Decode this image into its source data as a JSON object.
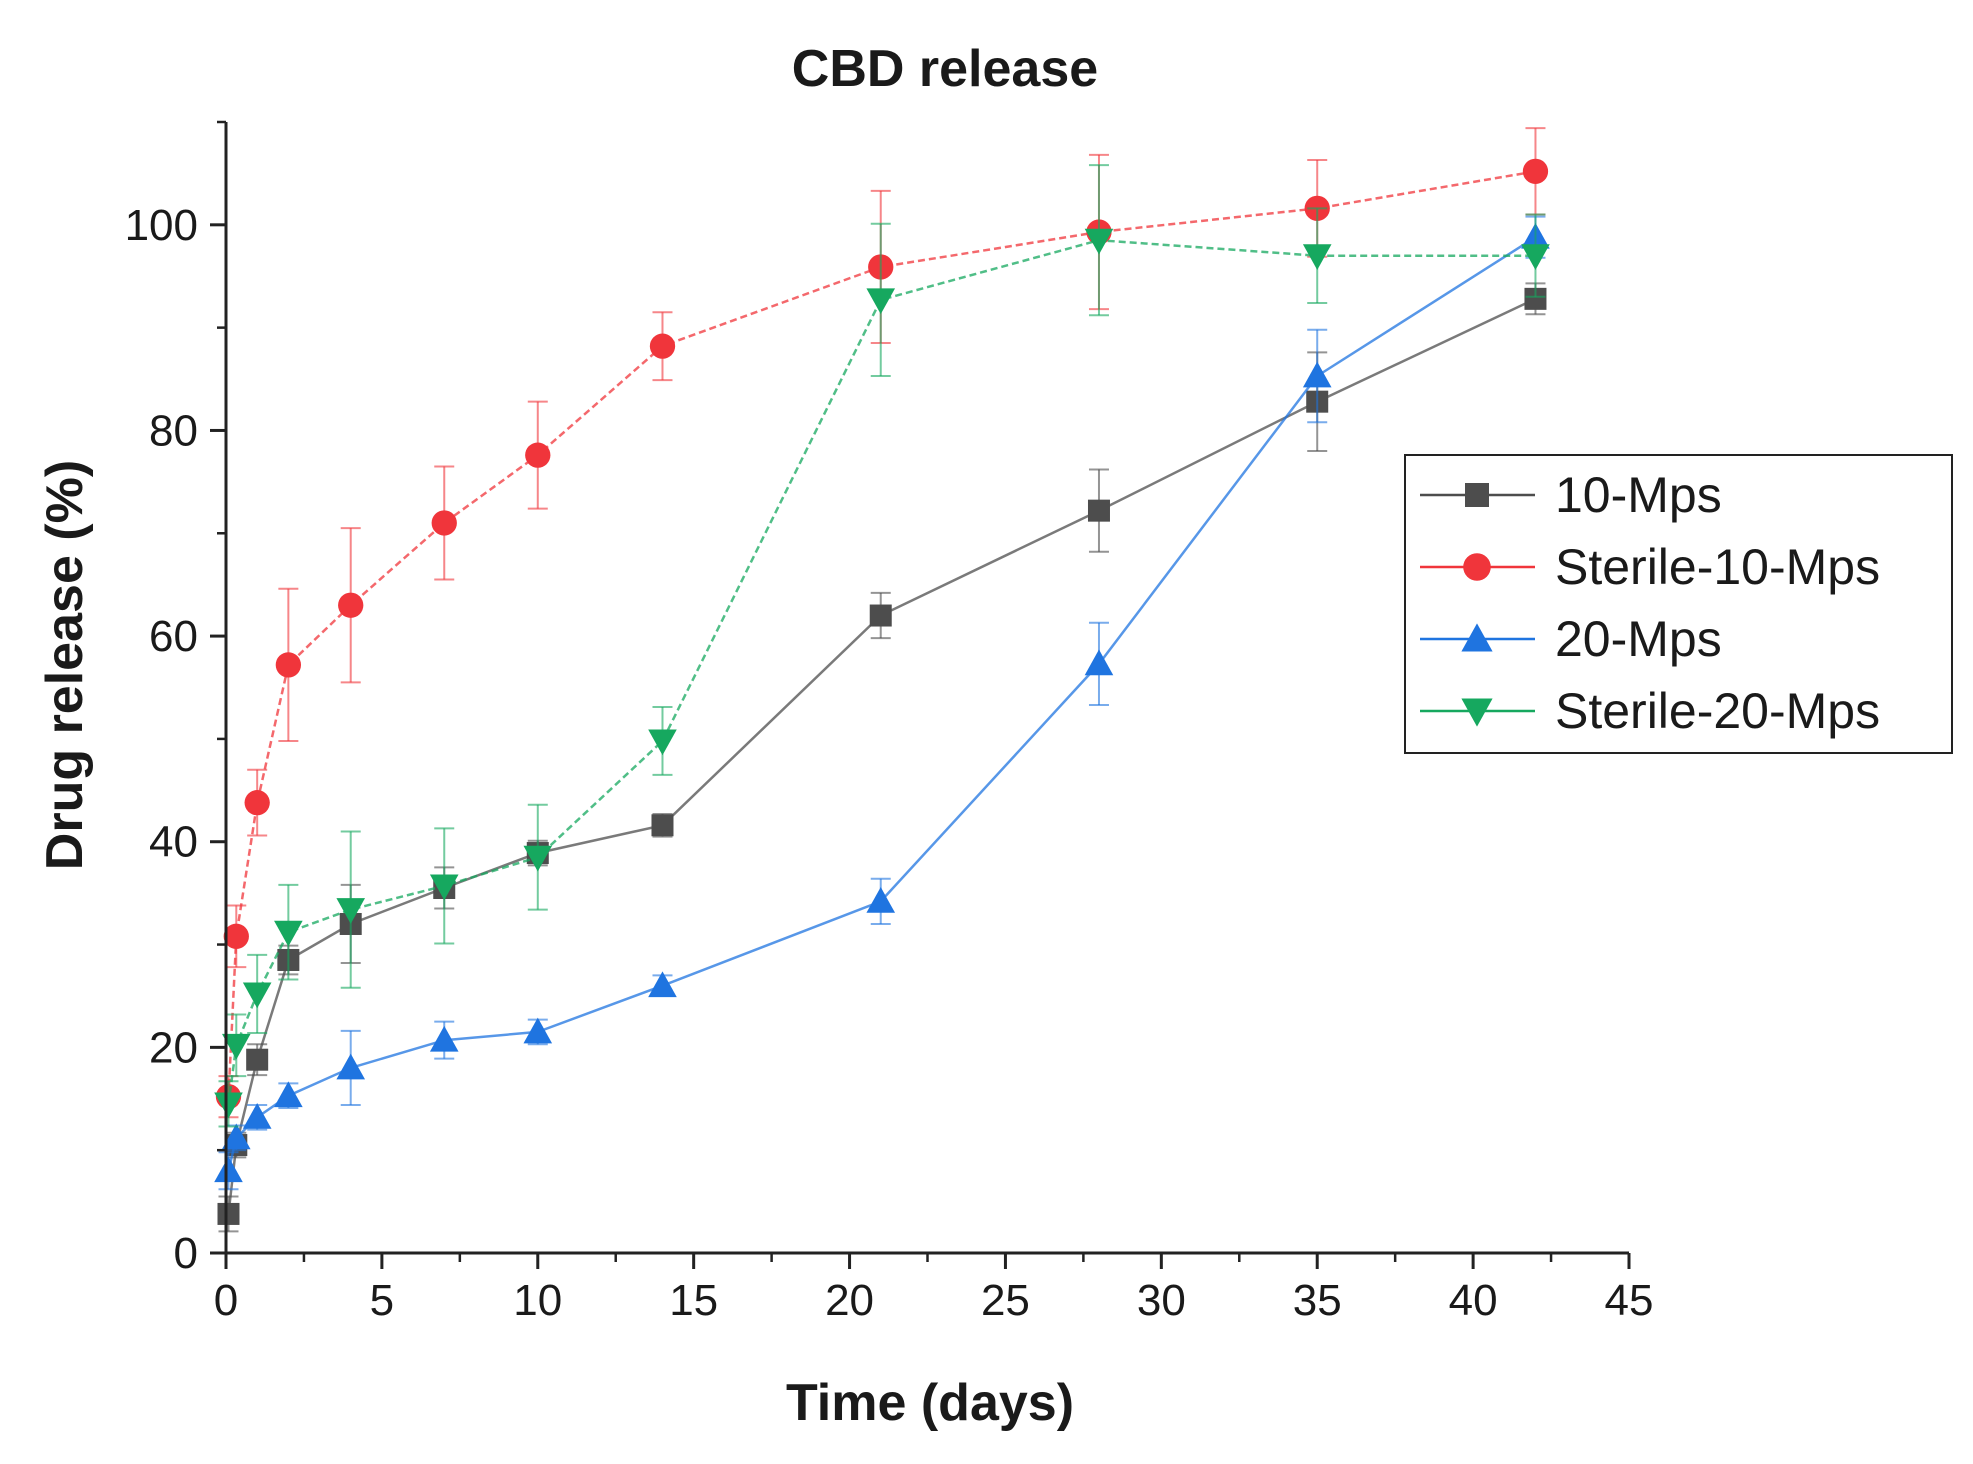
{
  "chart_data": {
    "type": "line",
    "title": "CBD release",
    "xlabel": "Time (days)",
    "ylabel": "Drug release (%)",
    "xlim": [
      0,
      45
    ],
    "ylim": [
      0,
      110
    ],
    "x_ticks": [
      0,
      5,
      10,
      15,
      20,
      25,
      30,
      35,
      40,
      45
    ],
    "y_ticks": [
      0,
      20,
      40,
      60,
      80,
      100
    ],
    "grid": false,
    "legend_position": "right",
    "series": [
      {
        "name": "10-Mps",
        "color": "#4d4d4d",
        "marker": "square",
        "x": [
          0.08,
          0.33,
          1,
          2,
          4,
          7,
          10,
          14,
          21,
          28,
          35,
          42
        ],
        "y": [
          3.8,
          10.5,
          18.8,
          28.5,
          32,
          35.5,
          38.9,
          41.6,
          62,
          72.2,
          82.8,
          92.8
        ],
        "err": [
          1.7,
          1.2,
          1.5,
          1.4,
          3.8,
          2,
          1.2,
          1.1,
          2.2,
          4,
          4.8,
          1.5
        ]
      },
      {
        "name": "Sterile-10-Mps",
        "color": "#f0353b",
        "marker": "circle",
        "x": [
          0.08,
          0.33,
          1,
          2,
          4,
          7,
          10,
          14,
          21,
          28,
          35,
          42
        ],
        "y": [
          15.2,
          30.8,
          43.8,
          57.2,
          63,
          71,
          77.6,
          88.2,
          95.9,
          99.3,
          101.6,
          105.2
        ],
        "err": [
          2,
          3,
          3.2,
          7.4,
          7.5,
          5.5,
          5.2,
          3.3,
          7.4,
          7.5,
          4.7,
          4.2
        ]
      },
      {
        "name": "20-Mps",
        "color": "#1f74e0",
        "marker": "triangle-up",
        "x": [
          0.08,
          0.33,
          1,
          2,
          4,
          7,
          10,
          14,
          21,
          28,
          35,
          42
        ],
        "y": [
          8,
          11.2,
          13.2,
          15.3,
          18,
          20.7,
          21.5,
          26,
          34.2,
          57.3,
          85.3,
          98.8
        ],
        "err": [
          1.8,
          1.2,
          1.2,
          1.2,
          3.6,
          1.8,
          1.2,
          1,
          2.2,
          4,
          4.5,
          2
        ]
      },
      {
        "name": "Sterile-20-Mps",
        "color": "#16a85f",
        "marker": "triangle-down",
        "x": [
          0.08,
          0.33,
          1,
          2,
          4,
          7,
          10,
          14,
          21,
          28,
          35,
          42
        ],
        "y": [
          14.5,
          20.2,
          25.2,
          31.2,
          33.4,
          35.7,
          38.5,
          49.8,
          92.7,
          98.5,
          97,
          97
        ],
        "err": [
          2.2,
          3,
          3.8,
          4.6,
          7.6,
          5.6,
          5.1,
          3.3,
          7.4,
          7.3,
          4.6,
          4
        ]
      }
    ]
  }
}
